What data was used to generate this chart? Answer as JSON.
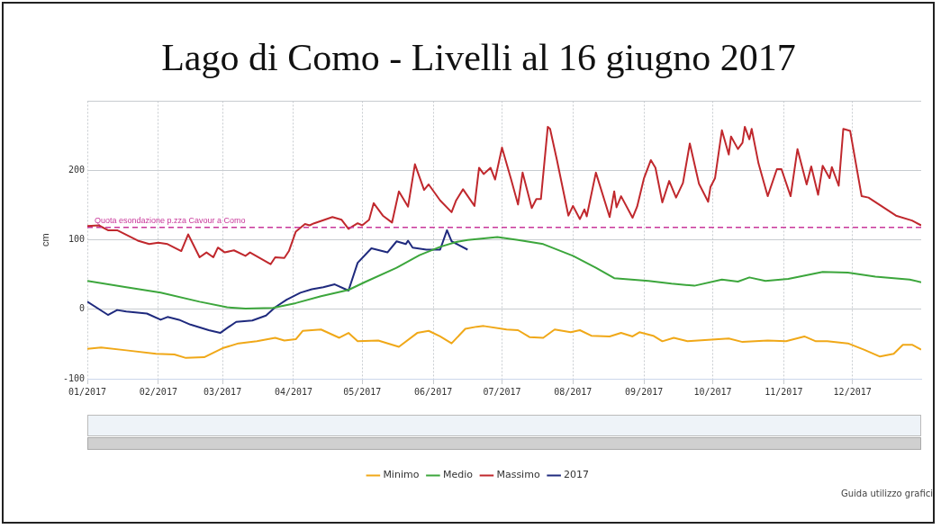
{
  "chart_data": {
    "type": "line",
    "title": "Lago di Como - Livelli al 16 giugno 2017",
    "ylabel": "cm",
    "xlim": [
      "2017-01-01",
      "2017-12-31"
    ],
    "ylim": [
      -100,
      300
    ],
    "xticks": [
      {
        "value": "2017-01-01",
        "label": "01/2017"
      },
      {
        "value": "2017-02-01",
        "label": "02/2017"
      },
      {
        "value": "2017-03-01",
        "label": "03/2017"
      },
      {
        "value": "2017-04-01",
        "label": "04/2017"
      },
      {
        "value": "2017-05-01",
        "label": "05/2017"
      },
      {
        "value": "2017-06-01",
        "label": "06/2017"
      },
      {
        "value": "2017-07-01",
        "label": "07/2017"
      },
      {
        "value": "2017-08-01",
        "label": "08/2017"
      },
      {
        "value": "2017-09-01",
        "label": "09/2017"
      },
      {
        "value": "2017-10-01",
        "label": "10/2017"
      },
      {
        "value": "2017-11-01",
        "label": "11/2017"
      },
      {
        "value": "2017-12-01",
        "label": "12/2017"
      }
    ],
    "yticks": [
      -100,
      0,
      100,
      200,
      {
        "value": 300,
        "label": null
      }
    ],
    "grid": true,
    "legend": "bottom",
    "marker": "none",
    "ref_lines": [
      {
        "axis": "y",
        "value": 118,
        "label": "Quota esondazione p.zza Cavour a Como",
        "color": "#c8379a",
        "line_style": "dashed"
      }
    ],
    "annotations": [
      "Guida utilizzo grafici"
    ],
    "series": [
      {
        "name": "Minimo",
        "color": "#f0a818",
        "x": [
          "2017-01-01",
          "2017-01-07",
          "2017-01-18",
          "2017-01-31",
          "2017-02-08",
          "2017-02-13",
          "2017-02-21",
          "2017-03-01",
          "2017-03-08",
          "2017-03-16",
          "2017-03-24",
          "2017-03-28",
          "2017-04-02",
          "2017-04-05",
          "2017-04-13",
          "2017-04-21",
          "2017-04-25",
          "2017-04-29",
          "2017-05-08",
          "2017-05-17",
          "2017-05-25",
          "2017-05-30",
          "2017-06-04",
          "2017-06-09",
          "2017-06-15",
          "2017-06-20",
          "2017-06-23",
          "2017-07-03",
          "2017-07-08",
          "2017-07-13",
          "2017-07-19",
          "2017-07-24",
          "2017-07-31",
          "2017-08-04",
          "2017-08-09",
          "2017-08-17",
          "2017-08-22",
          "2017-08-27",
          "2017-08-30",
          "2017-09-05",
          "2017-09-09",
          "2017-09-14",
          "2017-09-20",
          "2017-09-29",
          "2017-10-08",
          "2017-10-14",
          "2017-10-25",
          "2017-11-02",
          "2017-11-10",
          "2017-11-15",
          "2017-11-20",
          "2017-11-29",
          "2017-12-06",
          "2017-12-13",
          "2017-12-19",
          "2017-12-23",
          "2017-12-27",
          "2017-12-31"
        ],
        "values": [
          -57,
          -55,
          -59,
          -64,
          -65,
          -70,
          -69,
          -56,
          -49,
          -46,
          -41,
          -45,
          -43,
          -31,
          -29,
          -41,
          -34,
          -46,
          -45,
          -54,
          -34,
          -31,
          -39,
          -49,
          -28,
          -25,
          -24,
          -29,
          -30,
          -40,
          -41,
          -29,
          -33,
          -30,
          -38,
          -39,
          -34,
          -39,
          -33,
          -38,
          -46,
          -41,
          -46,
          -44,
          -42,
          -47,
          -45,
          -46,
          -39,
          -46,
          -46,
          -49,
          -58,
          -68,
          -64,
          -51,
          -51,
          -58
        ]
      },
      {
        "name": "Medio",
        "color": "#3ca63c",
        "x": [
          "2017-01-01",
          "2017-01-18",
          "2017-02-02",
          "2017-02-19",
          "2017-03-03",
          "2017-03-11",
          "2017-03-23",
          "2017-04-02",
          "2017-04-13",
          "2017-04-25",
          "2017-05-02",
          "2017-05-16",
          "2017-05-26",
          "2017-06-04",
          "2017-06-11",
          "2017-06-16",
          "2017-06-29",
          "2017-07-08",
          "2017-07-19",
          "2017-08-01",
          "2017-08-11",
          "2017-08-19",
          "2017-09-03",
          "2017-09-13",
          "2017-09-23",
          "2017-10-05",
          "2017-10-12",
          "2017-10-17",
          "2017-10-24",
          "2017-11-03",
          "2017-11-18",
          "2017-11-29",
          "2017-12-11",
          "2017-12-26",
          "2017-12-31"
        ],
        "values": [
          41,
          32,
          24,
          11,
          3,
          1,
          2,
          9,
          19,
          28,
          39,
          60,
          78,
          90,
          97,
          100,
          104,
          100,
          94,
          77,
          60,
          45,
          41,
          37,
          34,
          43,
          40,
          46,
          41,
          44,
          54,
          53,
          47,
          43,
          39
        ]
      },
      {
        "name": "Massimo",
        "color": "#c0282d",
        "x": [
          "2017-01-01",
          "2017-01-06",
          "2017-01-10",
          "2017-01-14",
          "2017-01-23",
          "2017-01-28",
          "2017-02-01",
          "2017-02-05",
          "2017-02-11",
          "2017-02-14",
          "2017-02-19",
          "2017-02-22",
          "2017-02-25",
          "2017-02-27",
          "2017-03-02",
          "2017-03-06",
          "2017-03-11",
          "2017-03-13",
          "2017-03-22",
          "2017-03-24",
          "2017-03-28",
          "2017-03-30",
          "2017-04-02",
          "2017-04-06",
          "2017-04-08",
          "2017-04-10",
          "2017-04-18",
          "2017-04-22",
          "2017-04-25",
          "2017-04-29",
          "2017-05-01",
          "2017-05-04",
          "2017-05-06",
          "2017-05-10",
          "2017-05-14",
          "2017-05-17",
          "2017-05-21",
          "2017-05-24",
          "2017-05-28",
          "2017-05-30",
          "2017-06-04",
          "2017-06-09",
          "2017-06-11",
          "2017-06-14",
          "2017-06-19",
          "2017-06-21",
          "2017-06-23",
          "2017-06-26",
          "2017-06-28",
          "2017-07-01",
          "2017-07-05",
          "2017-07-08",
          "2017-07-10",
          "2017-07-14",
          "2017-07-16",
          "2017-07-18",
          "2017-07-21",
          "2017-07-22",
          "2017-07-25",
          "2017-07-30",
          "2017-08-01",
          "2017-08-04",
          "2017-08-06",
          "2017-08-07",
          "2017-08-11",
          "2017-08-17",
          "2017-08-19",
          "2017-08-20",
          "2017-08-22",
          "2017-08-27",
          "2017-08-29",
          "2017-09-01",
          "2017-09-04",
          "2017-09-06",
          "2017-09-09",
          "2017-09-12",
          "2017-09-15",
          "2017-09-18",
          "2017-09-21",
          "2017-09-25",
          "2017-09-29",
          "2017-09-30",
          "2017-10-02",
          "2017-10-05",
          "2017-10-08",
          "2017-10-09",
          "2017-10-12",
          "2017-10-14",
          "2017-10-15",
          "2017-10-17",
          "2017-10-18",
          "2017-10-21",
          "2017-10-25",
          "2017-10-29",
          "2017-10-31",
          "2017-11-04",
          "2017-11-07",
          "2017-11-11",
          "2017-11-13",
          "2017-11-16",
          "2017-11-18",
          "2017-11-21",
          "2017-11-22",
          "2017-11-25",
          "2017-11-27",
          "2017-11-30",
          "2017-12-05",
          "2017-12-08",
          "2017-12-14",
          "2017-12-20",
          "2017-12-27",
          "2017-12-31"
        ],
        "values": [
          120,
          121,
          114,
          114,
          99,
          94,
          96,
          94,
          84,
          108,
          75,
          82,
          75,
          89,
          82,
          85,
          77,
          82,
          65,
          75,
          74,
          84,
          112,
          123,
          121,
          124,
          133,
          129,
          116,
          124,
          121,
          129,
          153,
          135,
          125,
          170,
          148,
          209,
          172,
          180,
          157,
          140,
          157,
          173,
          149,
          204,
          195,
          204,
          187,
          233,
          187,
          151,
          197,
          146,
          159,
          159,
          263,
          260,
          215,
          135,
          149,
          130,
          144,
          134,
          197,
          133,
          170,
          147,
          163,
          132,
          148,
          189,
          215,
          204,
          154,
          185,
          161,
          182,
          239,
          181,
          155,
          176,
          189,
          258,
          223,
          249,
          231,
          240,
          263,
          245,
          260,
          210,
          163,
          202,
          202,
          163,
          231,
          180,
          206,
          165,
          207,
          189,
          205,
          178,
          260,
          257,
          163,
          161,
          148,
          135,
          128,
          121
        ]
      },
      {
        "name": "2017",
        "color": "#1f2a7e",
        "x": [
          "2017-01-01",
          "2017-01-10",
          "2017-01-14",
          "2017-01-18",
          "2017-01-27",
          "2017-02-02",
          "2017-02-05",
          "2017-02-10",
          "2017-02-15",
          "2017-02-23",
          "2017-02-28",
          "2017-03-03",
          "2017-03-07",
          "2017-03-14",
          "2017-03-20",
          "2017-03-24",
          "2017-03-29",
          "2017-04-04",
          "2017-04-09",
          "2017-04-14",
          "2017-04-19",
          "2017-04-25",
          "2017-04-29",
          "2017-05-05",
          "2017-05-12",
          "2017-05-16",
          "2017-05-20",
          "2017-05-21",
          "2017-05-23",
          "2017-05-29",
          "2017-06-04",
          "2017-06-07",
          "2017-06-09",
          "2017-06-16"
        ],
        "values": [
          11,
          -8,
          -1,
          -3,
          -6,
          -15,
          -11,
          -15,
          -22,
          -30,
          -34,
          -27,
          -18,
          -16,
          -9,
          3,
          14,
          24,
          29,
          32,
          36,
          27,
          67,
          88,
          82,
          98,
          94,
          99,
          89,
          86,
          86,
          114,
          98,
          86
        ]
      }
    ]
  }
}
